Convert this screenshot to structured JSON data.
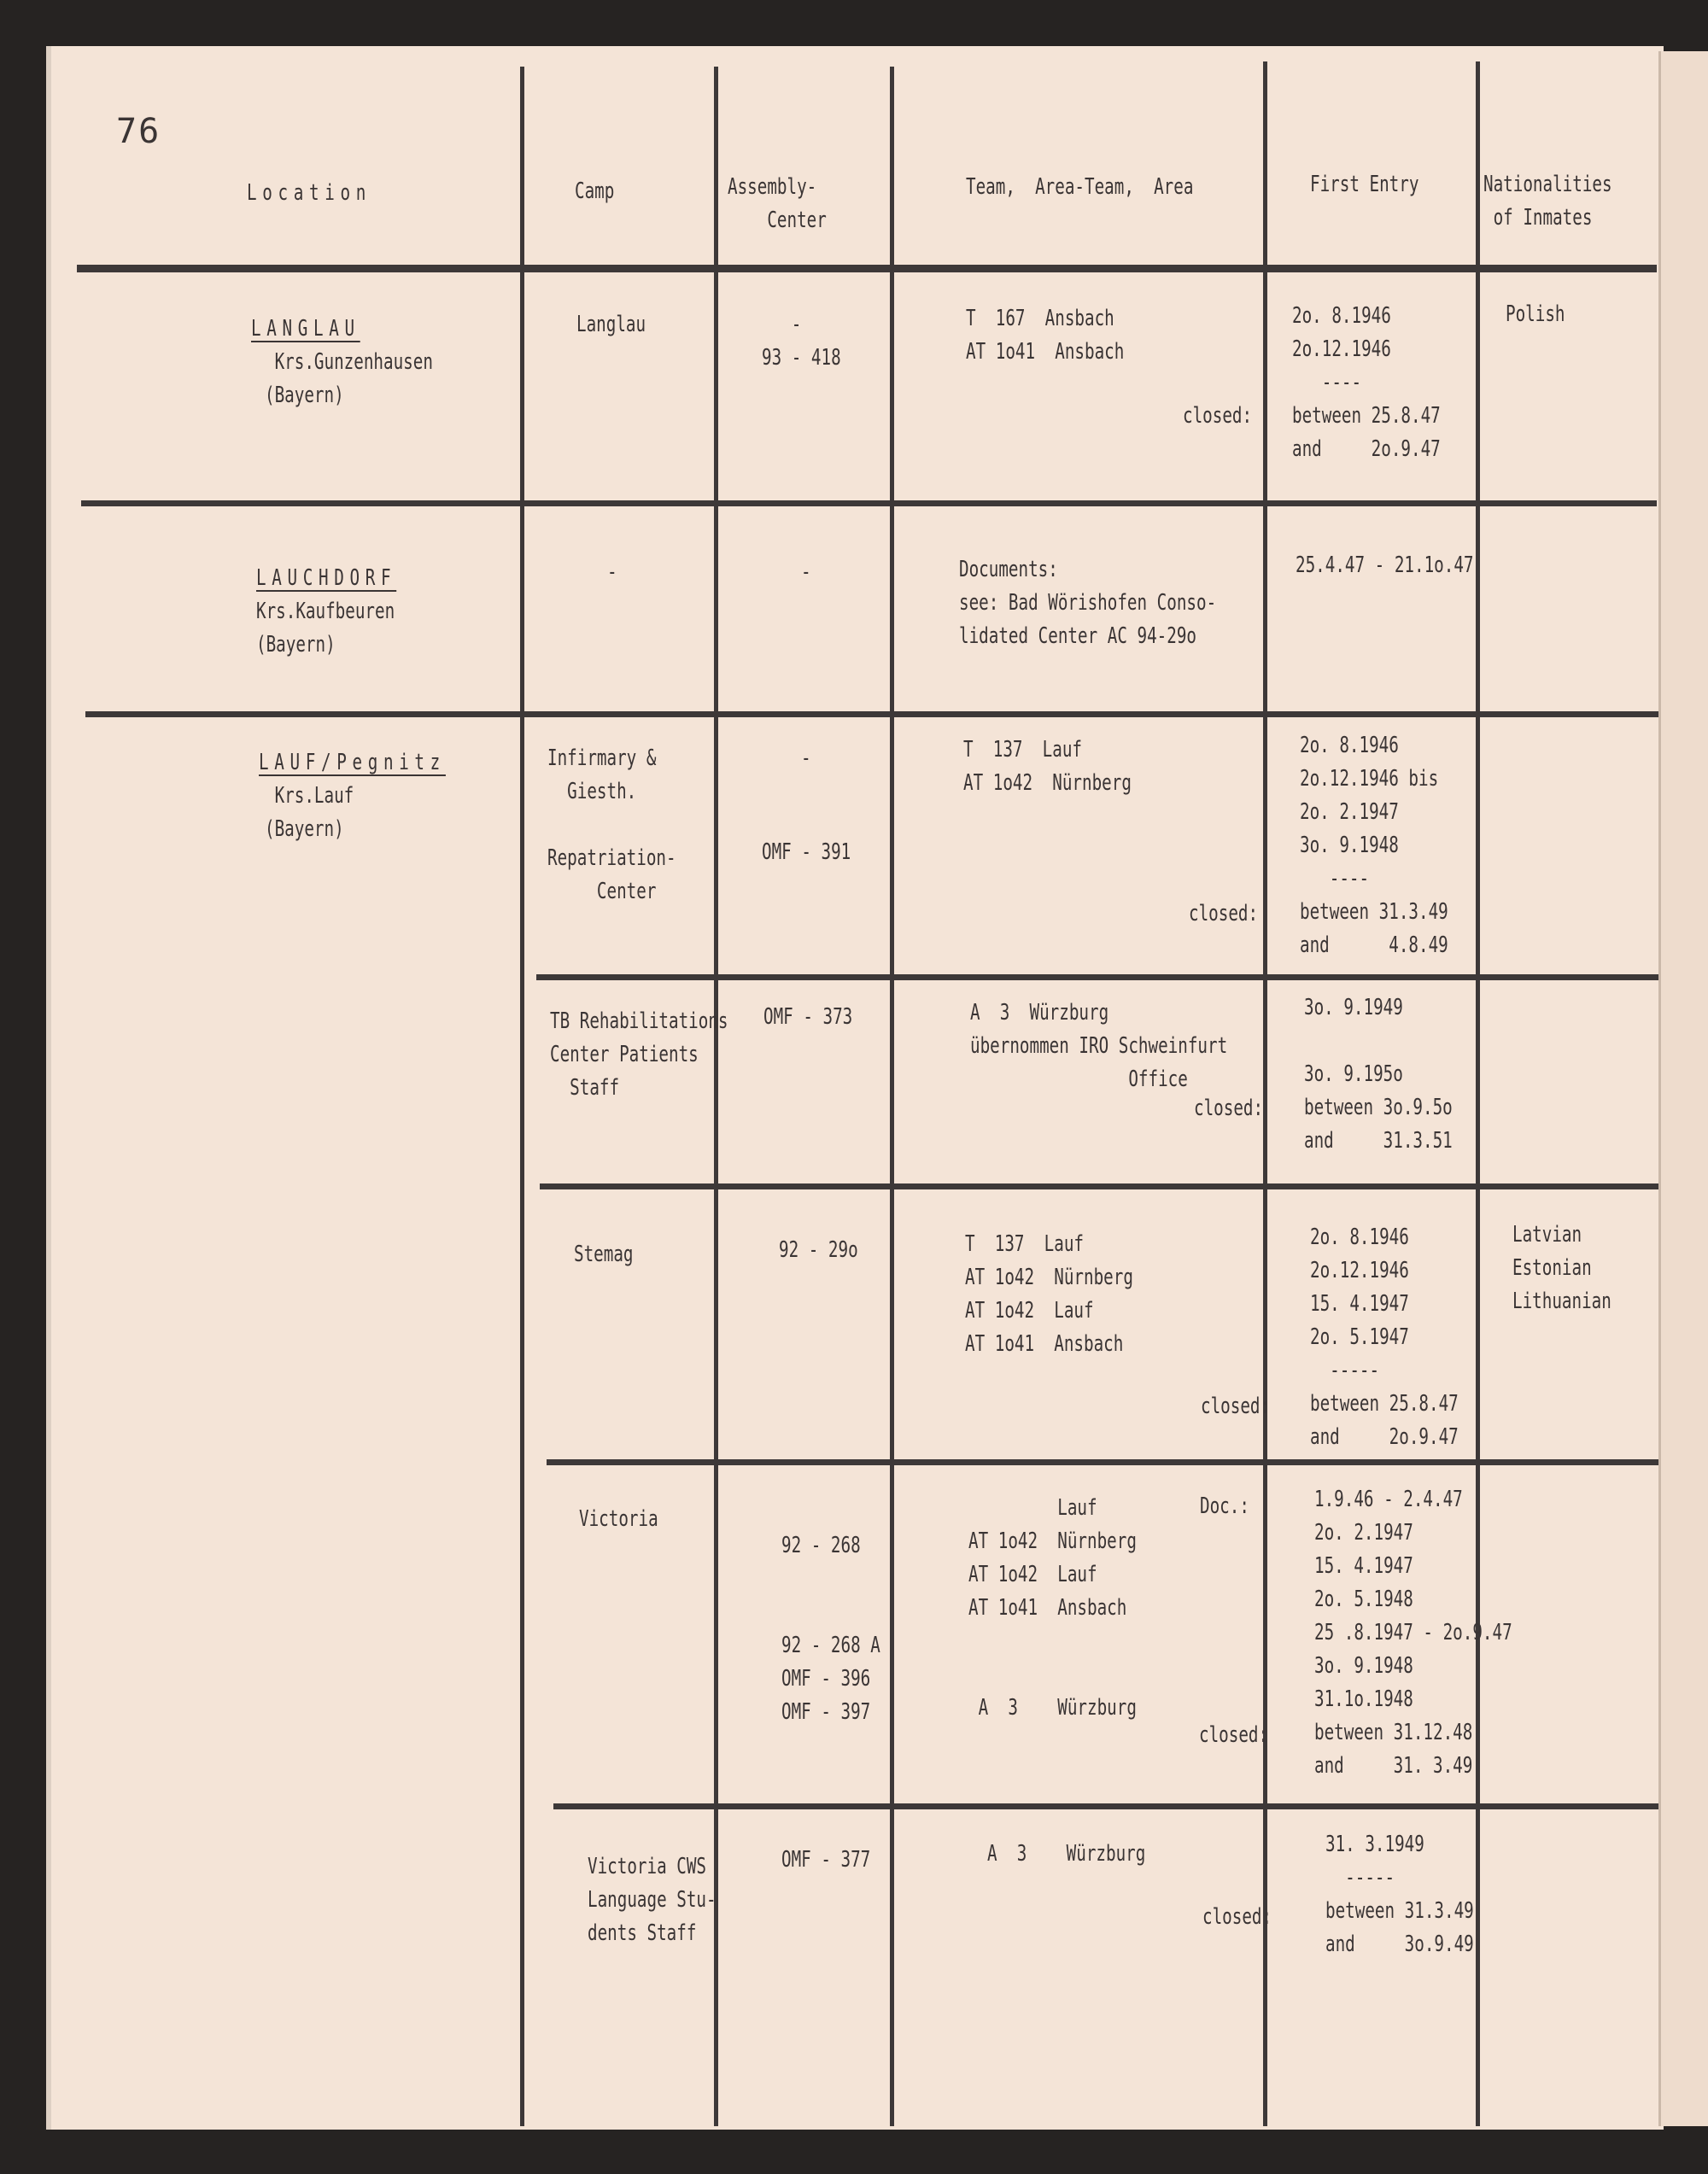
{
  "page_number": "76",
  "headers": {
    "location": "Location",
    "camp": "Camp",
    "assembly_center": "Assembly-\n    Center",
    "team": "Team,  Area-Team,  Area",
    "first_entry": "First Entry",
    "nationalities": "Nationalities\n of Inmates"
  },
  "rows": [
    {
      "location_name": "LANGLAU",
      "location_detail": " Krs.Gunzenhausen\n(Bayern)",
      "camp": "Langlau",
      "assembly": "   -\n93 - 418",
      "team": "T  167  Ansbach\nAT 1o41  Ansbach",
      "closed_label": "closed:",
      "first_entry": "2o. 8.1946\n2o.12.1946\n   ----\nbetween 25.8.47\nand     2o.9.47",
      "nationalities": "Polish"
    },
    {
      "location_name": "LAUCHDORF",
      "location_detail": "Krs.Kaufbeuren\n(Bayern)",
      "camp": "-",
      "assembly": "-",
      "team": "Documents:\nsee: Bad Wörishofen Conso-\nlidated Center AC 94-29o",
      "first_entry": "25.4.47 - 21.1o.47"
    },
    {
      "location_name": "LAUF/Pegnitz",
      "location_detail": " Krs.Lauf\n(Bayern)",
      "subcamps": [
        {
          "camp": "Infirmary &\n  Giesth.\n\nRepatriation-\n     Center",
          "assembly_top": "-",
          "assembly": "OMF - 391",
          "team": "T  137  Lauf\nAT 1o42  Nürnberg",
          "closed_label": "closed:",
          "first_entry": "2o. 8.1946\n2o.12.1946 bis\n2o. 2.1947\n3o. 9.1948\n   ----\nbetween 31.3.49\nand      4.8.49"
        },
        {
          "camp": "TB Rehabilitations\nCenter Patients\n  Staff",
          "assembly": "OMF - 373",
          "team": "A  3  Würzburg\nübernommen IRO Schweinfurt\n                Office",
          "closed_label": "closed:",
          "first_entry": "3o. 9.1949\n\n3o. 9.195o\nbetween 3o.9.5o\nand     31.3.51"
        },
        {
          "camp": "Stemag",
          "assembly": "92 - 29o",
          "team": "T  137  Lauf\nAT 1o42  Nürnberg\nAT 1o42  Lauf\nAT 1o41  Ansbach",
          "closed_label": "closed:",
          "first_entry": "2o. 8.1946\n2o.12.1946\n15. 4.1947\n2o. 5.1947\n  -----\nbetween 25.8.47\nand     2o.9.47",
          "nationalities": "Latvian\nEstonian\nLithuanian"
        },
        {
          "camp": "Victoria",
          "assembly": "92 - 268\n\n\n92 - 268 A\nOMF - 396\nOMF - 397",
          "team": "         Lauf\nAT 1o42  Nürnberg\nAT 1o42  Lauf\nAT 1o41  Ansbach\n\n\n A  3    Würzburg",
          "doc_label": "Doc.:",
          "closed_label": "closed:",
          "first_entry": "1.9.46 - 2.4.47\n2o. 2.1947\n15. 4.1947\n2o. 5.1948\n25 .8.1947 - 2o.9.47\n3o. 9.1948\n31.1o.1948\nbetween 31.12.48\nand     31. 3.49"
        },
        {
          "camp": "Victoria CWS\nLanguage Stu-\ndents Staff",
          "assembly": "OMF - 377",
          "team": "A  3    Würzburg",
          "closed_label": "closed:",
          "first_entry": "31. 3.1949\n  -----\nbetween 31.3.49\nand     3o.9.49"
        }
      ]
    }
  ]
}
